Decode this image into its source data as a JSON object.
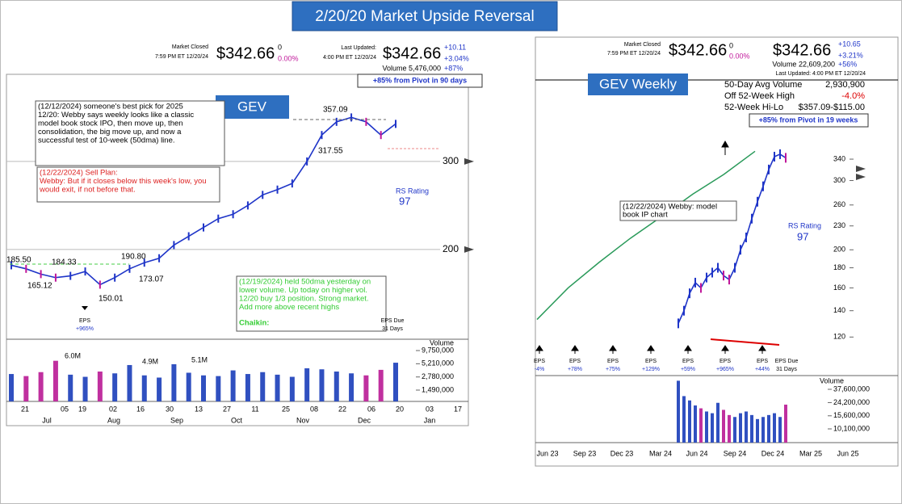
{
  "title": "2/20/20 Market Upside Reversal",
  "left": {
    "header": {
      "status": "Market Closed",
      "status_time": "7:59 PM ET 12/20/24",
      "after_price": "$342.66",
      "after_change": "0",
      "after_pct": "0.00%",
      "updated": "Last Updated:",
      "updated_time": "4:00 PM ET 12/20/24",
      "price": "$342.66",
      "change": "+10.11",
      "pct": "+3.04%",
      "volume": "Volume 5,476,000",
      "volume_pct": "+87%"
    },
    "pivot": "+85% from Pivot in 90 days",
    "symbol": "GEV",
    "notes": [
      [
        "(12/12/2024) someone's best pick for 2025",
        "12/20: Webby says weekly looks like a classic",
        " model book stock IPO, then move up, then",
        "consolidation, the big move up, and now a",
        "successful test of 10-week (50dma) line."
      ],
      [
        "(12/22/2024) Sell Plan:",
        "Webby: But if it closes below this week's low, you",
        "would exit, if not before that."
      ],
      [
        "(12/19/2024) held 50dma yesterday on",
        "lower volume. Up today on higher vol.",
        "12/20 buy 1/3 position.  Strong market.",
        "Add more above recent highs"
      ]
    ],
    "chaikin": "Chaikin:",
    "price_labels": [
      "185.50",
      "184.33",
      "165.12",
      "190.80",
      "173.07",
      "150.01",
      "357.09",
      "317.55"
    ],
    "rs_label": "RS Rating",
    "rs_value": "97",
    "eps": [
      {
        "label": "EPS",
        "change": "+965%"
      }
    ],
    "eps_due": [
      "EPS Due",
      "31 Days"
    ],
    "price": {
      "ylim": [
        98,
        399
      ],
      "yticks": [
        200,
        300
      ],
      "values": [
        182,
        178,
        172,
        168,
        170,
        175,
        160,
        168,
        178,
        185,
        190,
        205,
        215,
        225,
        235,
        240,
        250,
        262,
        268,
        275,
        300,
        330,
        345,
        350,
        345,
        330,
        342.66
      ]
    },
    "volume": {
      "title": "Volume",
      "log_scale": true,
      "ylim": [
        870000,
        16700000
      ],
      "yticks": [
        {
          "value": 9750000,
          "label": "9,750,000"
        },
        {
          "value": 5210000,
          "label": "5,210,000"
        },
        {
          "value": 2780000,
          "label": "2,780,000"
        },
        {
          "value": 1490000,
          "label": "1,490,000"
        }
      ],
      "values": [
        3200000,
        2900000,
        3500000,
        6000000,
        3100000,
        2800000,
        3600000,
        3300000,
        4900000,
        3000000,
        2700000,
        5100000,
        3400000,
        3000000,
        2900000,
        3800000,
        3200000,
        3500000,
        3100000,
        2800000,
        4200000,
        4000000,
        3600000,
        3300000,
        3000000,
        3900000,
        5476000
      ],
      "labels": [
        "6.0M",
        "4.9M",
        "5.1M"
      ]
    },
    "x_days": [
      "21",
      "05",
      "19",
      "02",
      "16",
      "30",
      "13",
      "27",
      "11",
      "25",
      "08",
      "22",
      "06",
      "20",
      "03",
      "17"
    ],
    "x_months": [
      "Jul",
      "Aug",
      "Sep",
      "Oct",
      "Nov",
      "Dec",
      "Jan"
    ]
  },
  "right": {
    "header": {
      "status": "Market Closed",
      "status_time": "7:59 PM ET 12/20/24",
      "after_price": "$342.66",
      "after_change": "0",
      "after_pct": "0.00%",
      "price": "$342.66",
      "change": "+10.65",
      "pct": "+3.21%",
      "volume": "Volume 22,609,200",
      "volume_pct": "+56%",
      "updated": "Last Updated: 4:00 PM ET 12/20/24"
    },
    "stats": [
      [
        "50-Day Avg Volume",
        "2,930,900"
      ],
      [
        "Off 52-Week High",
        "-4.0%"
      ],
      [
        "52-Week Hi-Lo",
        "$357.09-$115.00"
      ]
    ],
    "pivot": "+85% from Pivot in 19 weeks",
    "symbol": "GEV Weekly",
    "note": [
      "(12/22/2024) Webby: model",
      "book IP chart"
    ],
    "rs_label": "RS Rating",
    "rs_value": "97",
    "eps": [
      {
        "label": "EPS",
        "change": "-4%"
      },
      {
        "label": "EPS",
        "change": "+78%"
      },
      {
        "label": "EPS",
        "change": "+75%"
      },
      {
        "label": "EPS",
        "change": "+129%"
      },
      {
        "label": "EPS",
        "change": "+59%"
      },
      {
        "label": "EPS",
        "change": "+965%"
      },
      {
        "label": "EPS",
        "change": "+44%"
      }
    ],
    "eps_due": [
      "EPS Due",
      "31 Days"
    ],
    "price": {
      "log_scale": true,
      "ylim": [
        113,
        538
      ],
      "yticks": [
        120,
        140,
        160,
        180,
        200,
        230,
        260,
        300,
        340
      ],
      "values": [
        130,
        140,
        155,
        165,
        160,
        170,
        175,
        180,
        172,
        168,
        180,
        200,
        215,
        240,
        265,
        290,
        320,
        345,
        350,
        342.66
      ]
    },
    "rs_line": {
      "values": [
        133,
        160,
        186,
        214,
        243,
        277,
        311,
        356
      ]
    },
    "volume": {
      "title": "Volume",
      "log_scale": true,
      "ylim": [
        6400000,
        51900000
      ],
      "yticks": [
        {
          "value": 37600000,
          "label": "37,600,000"
        },
        {
          "value": 24200000,
          "label": "24,200,000"
        },
        {
          "value": 15600000,
          "label": "15,600,000"
        },
        {
          "value": 10100000,
          "label": "10,100,000"
        }
      ],
      "values": [
        50000000,
        30000000,
        26000000,
        22000000,
        20000000,
        18000000,
        17000000,
        24000000,
        19000000,
        16000000,
        15000000,
        17000000,
        18000000,
        16000000,
        14000000,
        15000000,
        16000000,
        17000000,
        15000000,
        22609200
      ]
    },
    "x_months": [
      "Jun 23",
      "Sep 23",
      "Dec 23",
      "Mar 24",
      "Jun 24",
      "Sep 24",
      "Dec 24",
      "Mar 25",
      "Jun 25"
    ]
  }
}
